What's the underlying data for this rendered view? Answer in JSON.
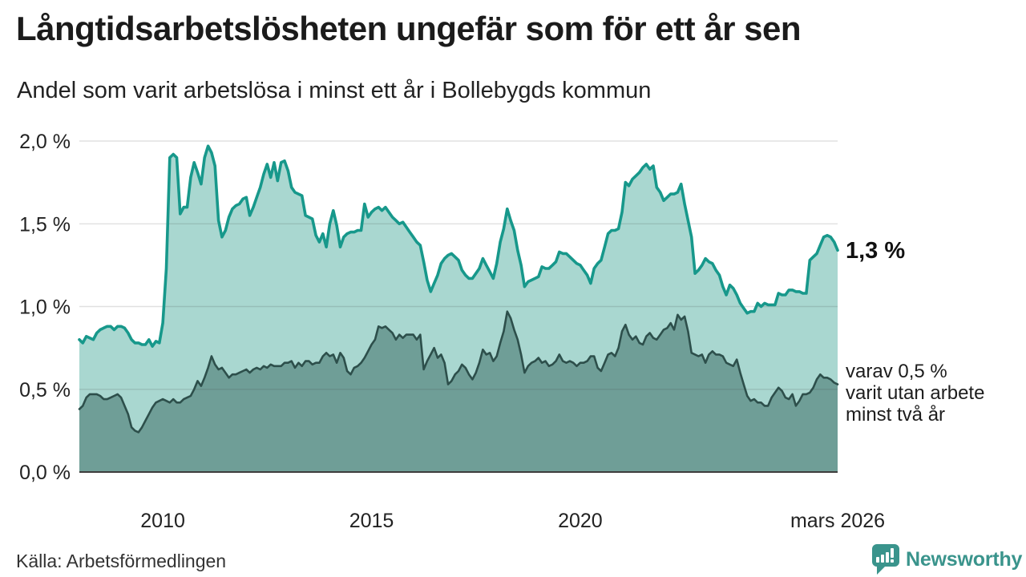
{
  "header": {
    "title": "Långtidsarbetslösheten ungefär som för ett år sen",
    "subtitle": "Andel som varit arbetslösa i minst ett år i Bollebygds kommun"
  },
  "annotations": {
    "latest_value": "1,3 %",
    "secondary": [
      "varav 0,5 %",
      "varit utan arbete",
      "minst två år"
    ]
  },
  "footer": {
    "source": "Källa: Arbetsförmedlingen",
    "brand": "Newsworthy"
  },
  "colors": {
    "line_primary": "#17988b",
    "fill_primary": "#a9d7d0",
    "line_secondary": "#2d4f4b",
    "fill_secondary": "#6f9e97",
    "axis": "#3d3d3d",
    "grid": "rgba(60,60,60,0.16)",
    "brand_teal": "#3a948c"
  },
  "chart_data": {
    "type": "area",
    "title": "Långtidsarbetslösheten ungefär som för ett år sen",
    "subtitle": "Andel som varit arbetslösa i minst ett år i Bollebygds kommun",
    "unit": "%",
    "frequency": "monthly",
    "x_start": "2008-01",
    "x_end": "2026-03",
    "ylim": [
      0,
      2.0
    ],
    "grid": true,
    "legend_position": "end-of-line-labels",
    "y_ticks": [
      {
        "label": "0,0 %",
        "value": 0.0
      },
      {
        "label": "0,5 %",
        "value": 0.5
      },
      {
        "label": "1,0 %",
        "value": 1.0
      },
      {
        "label": "1,5 %",
        "value": 1.5
      },
      {
        "label": "2,0 %",
        "value": 2.0
      }
    ],
    "x_ticks": [
      {
        "label": "2010",
        "month": 24
      },
      {
        "label": "2015",
        "month": 84
      },
      {
        "label": "2020",
        "month": 144
      },
      {
        "label": "mars 2026",
        "month": 218
      }
    ],
    "series": [
      {
        "id": "minst-ett-ar",
        "name": "Andel arbetslösa minst ett år",
        "end_label": "1,3 %",
        "color": "#17988b",
        "fill": "#a9d7d0",
        "line_width": 3.6,
        "values": [
          0.8,
          0.78,
          0.82,
          0.81,
          0.8,
          0.84,
          0.86,
          0.87,
          0.88,
          0.88,
          0.86,
          0.88,
          0.88,
          0.87,
          0.84,
          0.8,
          0.78,
          0.78,
          0.77,
          0.77,
          0.8,
          0.76,
          0.79,
          0.78,
          0.9,
          1.23,
          1.9,
          1.92,
          1.9,
          1.56,
          1.6,
          1.6,
          1.78,
          1.87,
          1.81,
          1.74,
          1.9,
          1.97,
          1.93,
          1.85,
          1.52,
          1.42,
          1.46,
          1.54,
          1.59,
          1.61,
          1.62,
          1.65,
          1.66,
          1.55,
          1.6,
          1.66,
          1.72,
          1.8,
          1.86,
          1.78,
          1.87,
          1.76,
          1.87,
          1.88,
          1.82,
          1.72,
          1.69,
          1.68,
          1.67,
          1.55,
          1.54,
          1.53,
          1.43,
          1.39,
          1.44,
          1.36,
          1.5,
          1.58,
          1.49,
          1.36,
          1.42,
          1.44,
          1.45,
          1.45,
          1.46,
          1.46,
          1.62,
          1.54,
          1.57,
          1.59,
          1.6,
          1.58,
          1.6,
          1.57,
          1.54,
          1.52,
          1.5,
          1.51,
          1.48,
          1.45,
          1.42,
          1.39,
          1.37,
          1.27,
          1.16,
          1.09,
          1.14,
          1.19,
          1.26,
          1.29,
          1.31,
          1.32,
          1.3,
          1.28,
          1.22,
          1.19,
          1.17,
          1.17,
          1.2,
          1.23,
          1.29,
          1.25,
          1.21,
          1.17,
          1.26,
          1.39,
          1.47,
          1.59,
          1.52,
          1.46,
          1.34,
          1.25,
          1.12,
          1.15,
          1.16,
          1.17,
          1.18,
          1.24,
          1.23,
          1.23,
          1.25,
          1.27,
          1.33,
          1.32,
          1.32,
          1.3,
          1.28,
          1.26,
          1.25,
          1.22,
          1.19,
          1.14,
          1.23,
          1.26,
          1.28,
          1.36,
          1.44,
          1.46,
          1.46,
          1.47,
          1.57,
          1.75,
          1.73,
          1.77,
          1.79,
          1.81,
          1.84,
          1.86,
          1.83,
          1.85,
          1.72,
          1.69,
          1.64,
          1.66,
          1.68,
          1.68,
          1.69,
          1.74,
          1.62,
          1.52,
          1.42,
          1.2,
          1.22,
          1.25,
          1.29,
          1.27,
          1.26,
          1.22,
          1.19,
          1.12,
          1.07,
          1.13,
          1.11,
          1.07,
          1.02,
          0.99,
          0.96,
          0.97,
          0.97,
          1.02,
          1.0,
          1.02,
          1.01,
          1.01,
          1.01,
          1.08,
          1.07,
          1.07,
          1.1,
          1.1,
          1.09,
          1.09,
          1.08,
          1.08,
          1.28,
          1.3,
          1.32,
          1.37,
          1.42,
          1.43,
          1.42,
          1.39,
          1.34
        ]
      },
      {
        "id": "minst-tva-ar",
        "name": "varav utan arbete minst två år",
        "end_label": "varav 0,5 % varit utan arbete minst två år",
        "color": "#2d4f4b",
        "fill": "#6f9e97",
        "line_width": 2.6,
        "values": [
          0.38,
          0.4,
          0.45,
          0.47,
          0.47,
          0.47,
          0.46,
          0.44,
          0.44,
          0.45,
          0.46,
          0.47,
          0.45,
          0.4,
          0.35,
          0.27,
          0.25,
          0.24,
          0.27,
          0.31,
          0.35,
          0.39,
          0.42,
          0.43,
          0.44,
          0.43,
          0.42,
          0.44,
          0.42,
          0.42,
          0.44,
          0.45,
          0.46,
          0.5,
          0.55,
          0.52,
          0.57,
          0.63,
          0.7,
          0.65,
          0.62,
          0.63,
          0.6,
          0.57,
          0.59,
          0.59,
          0.6,
          0.61,
          0.62,
          0.6,
          0.62,
          0.63,
          0.62,
          0.64,
          0.63,
          0.65,
          0.64,
          0.64,
          0.64,
          0.66,
          0.66,
          0.67,
          0.63,
          0.66,
          0.64,
          0.67,
          0.67,
          0.65,
          0.66,
          0.66,
          0.7,
          0.72,
          0.7,
          0.71,
          0.66,
          0.72,
          0.69,
          0.61,
          0.59,
          0.63,
          0.64,
          0.66,
          0.69,
          0.73,
          0.77,
          0.8,
          0.88,
          0.87,
          0.88,
          0.86,
          0.84,
          0.8,
          0.83,
          0.81,
          0.83,
          0.83,
          0.83,
          0.8,
          0.83,
          0.62,
          0.67,
          0.71,
          0.75,
          0.69,
          0.71,
          0.66,
          0.53,
          0.55,
          0.59,
          0.61,
          0.65,
          0.63,
          0.59,
          0.56,
          0.6,
          0.66,
          0.74,
          0.71,
          0.72,
          0.67,
          0.7,
          0.78,
          0.85,
          0.97,
          0.93,
          0.86,
          0.8,
          0.71,
          0.6,
          0.64,
          0.66,
          0.67,
          0.69,
          0.66,
          0.67,
          0.64,
          0.65,
          0.67,
          0.71,
          0.67,
          0.66,
          0.67,
          0.66,
          0.64,
          0.66,
          0.66,
          0.67,
          0.7,
          0.7,
          0.63,
          0.61,
          0.66,
          0.71,
          0.72,
          0.7,
          0.75,
          0.85,
          0.89,
          0.83,
          0.8,
          0.82,
          0.78,
          0.77,
          0.82,
          0.84,
          0.81,
          0.8,
          0.83,
          0.86,
          0.87,
          0.9,
          0.86,
          0.95,
          0.92,
          0.94,
          0.85,
          0.72,
          0.71,
          0.7,
          0.71,
          0.66,
          0.71,
          0.73,
          0.71,
          0.71,
          0.7,
          0.66,
          0.65,
          0.64,
          0.68,
          0.6,
          0.53,
          0.46,
          0.43,
          0.44,
          0.42,
          0.42,
          0.4,
          0.4,
          0.45,
          0.48,
          0.51,
          0.49,
          0.45,
          0.44,
          0.47,
          0.4,
          0.43,
          0.47,
          0.47,
          0.48,
          0.51,
          0.56,
          0.59,
          0.57,
          0.57,
          0.56,
          0.54,
          0.53
        ]
      }
    ]
  }
}
